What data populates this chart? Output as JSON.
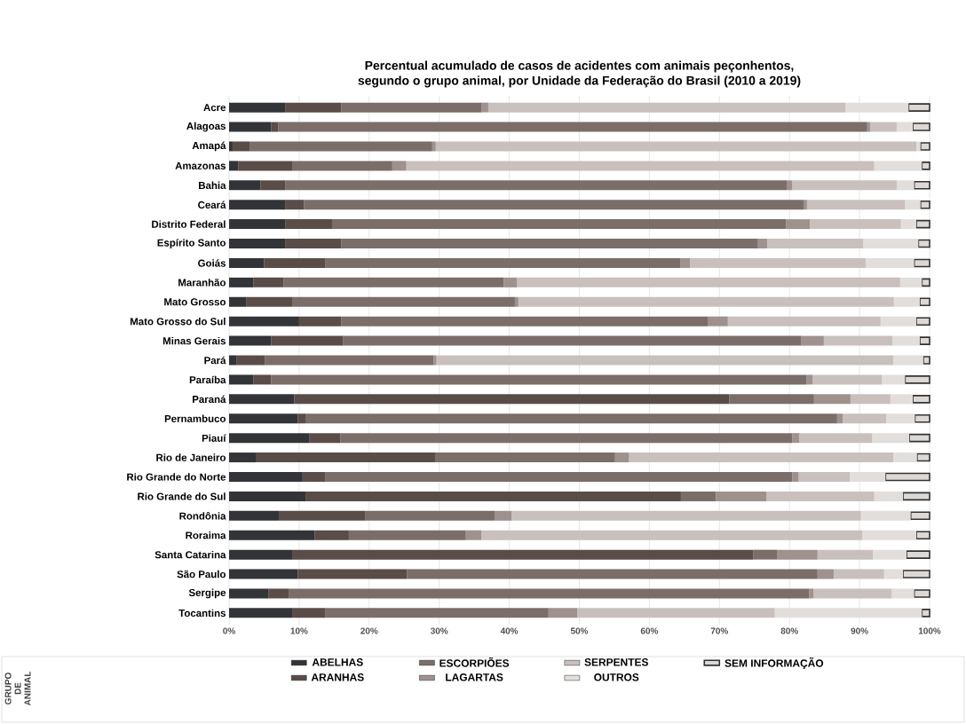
{
  "chart_data": {
    "type": "bar",
    "orientation": "horizontal",
    "stacked": true,
    "title": "Percentual acumulado de casos de acidentes com animais peçonhentos,\nsegundo o grupo animal, por Unidade da Federação do Brasil (2010 a 2019)",
    "categories": [
      "Acre",
      "Alagoas",
      "Amapá",
      "Amazonas",
      "Bahia",
      "Ceará",
      "Distrito Federal",
      "Espírito Santo",
      "Goiás",
      "Maranhão",
      "Mato Grosso",
      "Mato Grosso do Sul",
      "Minas Gerais",
      "Pará",
      "Paraíba",
      "Paraná",
      "Pernambuco",
      "Piauí",
      "Rio de Janeiro",
      "Rio Grande do Norte",
      "Rio Grande do Sul",
      "Rondônia",
      "Roraima",
      "Santa Catarina",
      "São Paulo",
      "Sergipe",
      "Tocantins"
    ],
    "series": [
      {
        "name": "ABELHAS",
        "color": "#333438",
        "values": [
          8,
          6,
          0.5,
          1.3,
          4.5,
          8,
          8,
          8,
          5,
          3.5,
          2.5,
          10,
          6,
          1.1,
          3.5,
          9.3,
          9.8,
          11.5,
          3.8,
          10.5,
          11,
          7.2,
          12.2,
          9.1,
          9.8,
          5.6,
          9.1
        ]
      },
      {
        "name": "ARANHAS",
        "color": "#594c49",
        "values": [
          8,
          1,
          2.5,
          7.7,
          3.5,
          2.7,
          6.7,
          8,
          8.7,
          4.3,
          6.5,
          6,
          10.3,
          4,
          2.5,
          62.1,
          1.2,
          4.4,
          25.6,
          3.2,
          53.5,
          12.2,
          4.9,
          65.7,
          15.6,
          2.9,
          4.6
        ]
      },
      {
        "name": "ESCORPIÕES",
        "color": "#7b6d6a",
        "values": [
          20,
          84.1,
          26,
          14.3,
          71.6,
          71.3,
          64.8,
          59.5,
          50.7,
          31.4,
          31.8,
          52.4,
          65.4,
          24.1,
          76.4,
          12.1,
          75.8,
          64.5,
          25.7,
          66.7,
          5,
          18.5,
          16.7,
          3.4,
          58.6,
          74.3,
          31.9
        ]
      },
      {
        "name": "LAGARTAS",
        "color": "#9e918e",
        "values": [
          1,
          0.4,
          0.5,
          2,
          0.8,
          0.5,
          3.4,
          1.3,
          1.4,
          1.9,
          0.5,
          2.8,
          3.2,
          0.4,
          0.9,
          5.2,
          0.8,
          1,
          2,
          0.9,
          7.2,
          2.4,
          2.2,
          5.8,
          2.3,
          0.6,
          4.1
        ]
      },
      {
        "name": "SERPENTES",
        "color": "#c9c0be",
        "values": [
          51,
          3.8,
          68.6,
          66.8,
          14.9,
          14,
          13,
          13.7,
          25.1,
          54.7,
          53.6,
          21.8,
          9.8,
          65.2,
          9.9,
          5.7,
          6.2,
          10.4,
          37.7,
          7.3,
          15.4,
          49.9,
          54.4,
          7.9,
          7.2,
          11.2,
          28.2
        ]
      },
      {
        "name": "OUTROS",
        "color": "#e2dedc",
        "values": [
          9,
          2.3,
          0.6,
          6.8,
          2.5,
          2.2,
          2.2,
          7.9,
          6.9,
          3.1,
          3.7,
          5.1,
          3.9,
          4.3,
          3.3,
          3.2,
          4.1,
          5.3,
          3.4,
          5.1,
          4.1,
          7.1,
          7.7,
          4.8,
          2.7,
          3.2,
          21
        ]
      },
      {
        "name": "SEM INFORMAÇÃO",
        "color": "#dcd8d6",
        "values": [
          3,
          2.4,
          1.3,
          1.1,
          2.2,
          1.3,
          1.9,
          1.6,
          2.2,
          1.1,
          1.4,
          1.9,
          1.4,
          0.9,
          3.5,
          2.4,
          2.1,
          2.9,
          1.8,
          6.3,
          3.8,
          2.7,
          1.9,
          3.3,
          3.8,
          2.2,
          1.1
        ]
      }
    ],
    "xlim": [
      0,
      100
    ],
    "xticks": [
      {
        "value": 0,
        "label": "0%"
      },
      {
        "value": 10,
        "label": "10%"
      },
      {
        "value": 20,
        "label": "20%"
      },
      {
        "value": 30,
        "label": "30%"
      },
      {
        "value": 40,
        "label": "40%"
      },
      {
        "value": 50,
        "label": "50%"
      },
      {
        "value": 60,
        "label": "60%"
      },
      {
        "value": 70,
        "label": "70%"
      },
      {
        "value": 80,
        "label": "80%"
      },
      {
        "value": 90,
        "label": "90%"
      },
      {
        "value": 100,
        "label": "100%"
      }
    ],
    "grid": "x",
    "legend": "bottom",
    "legend_title": "GRUPO DE ANIMAL"
  }
}
